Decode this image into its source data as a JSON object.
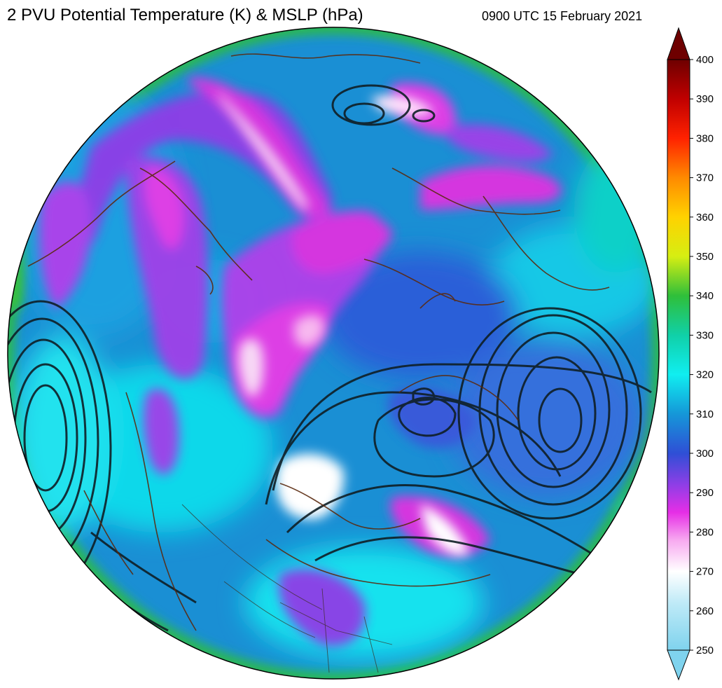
{
  "title": "2 PVU Potential Temperature (K) & MSLP (hPa)",
  "timestamp": "0900 UTC 15 February 2021",
  "colorbar": {
    "min": 250,
    "max": 400,
    "ticks": [
      "400",
      "390",
      "380",
      "370",
      "360",
      "350",
      "340",
      "330",
      "320",
      "310",
      "300",
      "290",
      "280",
      "270",
      "260",
      "250"
    ],
    "stops": [
      {
        "value": 250,
        "color": "#7fd3ee"
      },
      {
        "value": 262,
        "color": "#bfeaf7"
      },
      {
        "value": 270,
        "color": "#ffffff"
      },
      {
        "value": 278,
        "color": "#f7a8f0"
      },
      {
        "value": 285,
        "color": "#e62ee6"
      },
      {
        "value": 292,
        "color": "#8f3ee6"
      },
      {
        "value": 300,
        "color": "#2f4fd6"
      },
      {
        "value": 310,
        "color": "#1597d8"
      },
      {
        "value": 320,
        "color": "#10eef0"
      },
      {
        "value": 330,
        "color": "#10d0a8"
      },
      {
        "value": 340,
        "color": "#2fbf3a"
      },
      {
        "value": 350,
        "color": "#d6ee12"
      },
      {
        "value": 360,
        "color": "#ffd200"
      },
      {
        "value": 370,
        "color": "#ff8a00"
      },
      {
        "value": 380,
        "color": "#ff2200"
      },
      {
        "value": 390,
        "color": "#c00000"
      },
      {
        "value": 400,
        "color": "#6e0000"
      }
    ]
  }
}
